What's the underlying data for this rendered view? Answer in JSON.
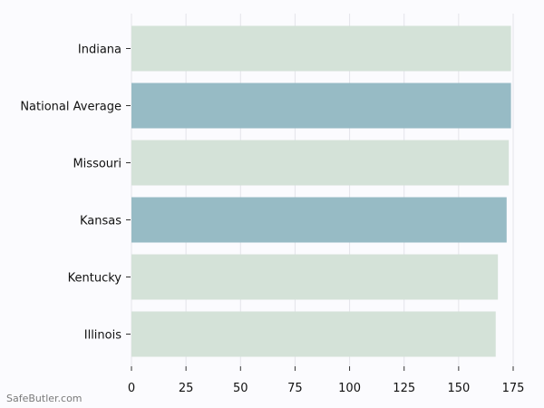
{
  "chart_data": {
    "type": "bar",
    "orientation": "horizontal",
    "categories": [
      "Indiana",
      "National Average",
      "Missouri",
      "Kansas",
      "Kentucky",
      "Illinois"
    ],
    "values": [
      174,
      174,
      173,
      172,
      168,
      167
    ],
    "bar_colors": [
      "#d4e2d8",
      "#97bbc5",
      "#d4e2d8",
      "#97bbc5",
      "#d4e2d8",
      "#d4e2d8"
    ],
    "xlim": [
      0,
      175
    ],
    "xticks": [
      "0",
      "25",
      "50",
      "75",
      "100",
      "125",
      "150",
      "175"
    ],
    "grid": "vertical"
  },
  "watermark": "SafeButler.com"
}
